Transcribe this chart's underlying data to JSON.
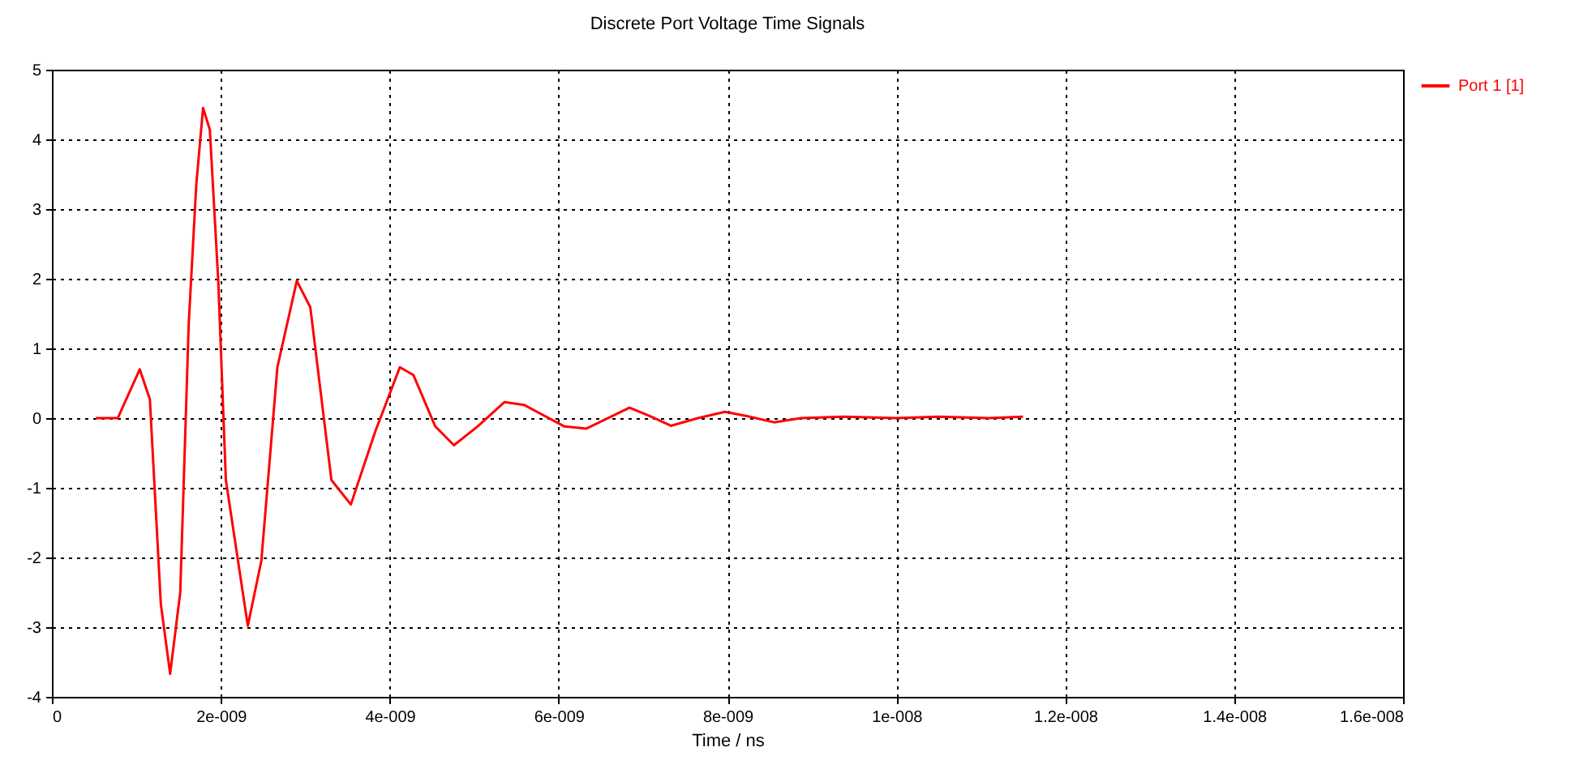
{
  "chart_data": {
    "type": "line",
    "title": "Discrete Port Voltage Time Signals",
    "xlabel": "Time / ns",
    "x": [
      5.2e-10,
      7.8e-10,
      1.04e-09,
      1.16e-09,
      1.29e-09,
      1.4e-09,
      1.52e-09,
      1.62e-09,
      1.71e-09,
      1.79e-09,
      1.87e-09,
      1.97e-09,
      2.06e-09,
      2.32e-09,
      2.48e-09,
      2.67e-09,
      2.9e-09,
      3.06e-09,
      3.31e-09,
      3.54e-09,
      3.83e-09,
      4.12e-09,
      4.28e-09,
      4.54e-09,
      4.76e-09,
      5.04e-09,
      5.36e-09,
      5.59e-09,
      6.07e-09,
      6.33e-09,
      6.84e-09,
      7.1e-09,
      7.33e-09,
      7.65e-09,
      7.97e-09,
      8.23e-09,
      8.55e-09,
      8.87e-09,
      9.38e-09,
      1e-08,
      1.05e-08,
      1.11e-08,
      1.15e-08
    ],
    "series": [
      {
        "name": "Port 1 [1]",
        "color": "#ff0000",
        "values": [
          0,
          0,
          0.7,
          0.27,
          -2.67,
          -3.67,
          -2.5,
          1.35,
          3.36,
          4.45,
          4.14,
          1.97,
          -0.89,
          -2.98,
          -2.05,
          0.73,
          1.97,
          1.59,
          -0.89,
          -1.24,
          -0.19,
          0.73,
          0.62,
          -0.12,
          -0.39,
          -0.12,
          0.23,
          0.19,
          -0.12,
          -0.15,
          0.15,
          0.02,
          -0.11,
          0,
          0.09,
          0.03,
          -0.06,
          0,
          0.02,
          0,
          0.02,
          0,
          0.02
        ]
      }
    ],
    "xlim": [
      0,
      1.6e-08
    ],
    "xticks": [
      0,
      {
        "value": 2e-09,
        "label": "2e-009"
      },
      {
        "value": 4e-09,
        "label": "4e-009"
      },
      {
        "value": 6e-09,
        "label": "6e-009"
      },
      {
        "value": 8e-09,
        "label": "8e-009"
      },
      {
        "value": 1e-08,
        "label": "1e-008"
      },
      {
        "value": 1.2e-08,
        "label": "1.2e-008"
      },
      {
        "value": 1.4e-08,
        "label": "1.4e-008"
      },
      {
        "value": 1.6e-08,
        "label": "1.6e-008"
      }
    ],
    "ylim": [
      -4,
      5
    ],
    "yticks": [
      -4,
      -3,
      -2,
      -1,
      0,
      1,
      2,
      3,
      4,
      5
    ],
    "grid": true,
    "legend": "top right"
  }
}
